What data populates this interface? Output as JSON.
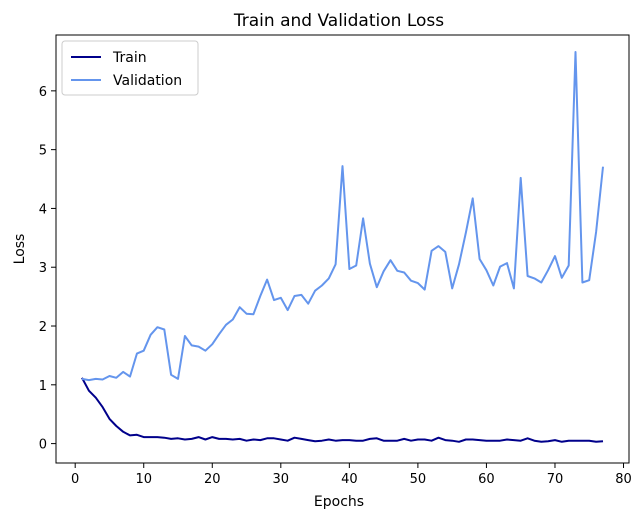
{
  "chart_data": {
    "type": "line",
    "title": "Train and Validation Loss",
    "xlabel": "Epochs",
    "ylabel": "Loss",
    "xlim": [
      -2.8,
      80.8
    ],
    "ylim": [
      -0.33,
      6.95
    ],
    "xticks": [
      0,
      10,
      20,
      30,
      40,
      50,
      60,
      70,
      80
    ],
    "yticks": [
      0,
      1,
      2,
      3,
      4,
      5,
      6
    ],
    "grid": false,
    "legend": "top-left",
    "x": [
      1,
      2,
      3,
      4,
      5,
      6,
      7,
      8,
      9,
      10,
      11,
      12,
      13,
      14,
      15,
      16,
      17,
      18,
      19,
      20,
      21,
      22,
      23,
      24,
      25,
      26,
      27,
      28,
      29,
      30,
      31,
      32,
      33,
      34,
      35,
      36,
      37,
      38,
      39,
      40,
      41,
      42,
      43,
      44,
      45,
      46,
      47,
      48,
      49,
      50,
      51,
      52,
      53,
      54,
      55,
      56,
      57,
      58,
      59,
      60,
      61,
      62,
      63,
      64,
      65,
      66,
      67,
      68,
      69,
      70,
      71,
      72,
      73,
      74,
      75,
      76,
      77
    ],
    "series": [
      {
        "name": "Train",
        "color": "#00008b",
        "values": [
          1.12,
          0.9,
          0.78,
          0.62,
          0.42,
          0.3,
          0.2,
          0.14,
          0.15,
          0.11,
          0.11,
          0.11,
          0.1,
          0.08,
          0.09,
          0.07,
          0.08,
          0.11,
          0.07,
          0.11,
          0.08,
          0.08,
          0.07,
          0.08,
          0.05,
          0.07,
          0.06,
          0.09,
          0.09,
          0.07,
          0.05,
          0.1,
          0.08,
          0.06,
          0.04,
          0.05,
          0.07,
          0.05,
          0.06,
          0.06,
          0.05,
          0.05,
          0.08,
          0.09,
          0.05,
          0.05,
          0.05,
          0.08,
          0.05,
          0.07,
          0.07,
          0.05,
          0.1,
          0.06,
          0.05,
          0.03,
          0.07,
          0.07,
          0.06,
          0.05,
          0.05,
          0.05,
          0.07,
          0.06,
          0.05,
          0.09,
          0.05,
          0.03,
          0.04,
          0.06,
          0.03,
          0.05,
          0.05,
          0.05,
          0.05,
          0.03,
          0.04
        ]
      },
      {
        "name": "Validation",
        "color": "#6495ed",
        "values": [
          1.1,
          1.08,
          1.1,
          1.09,
          1.15,
          1.12,
          1.22,
          1.14,
          1.53,
          1.58,
          1.85,
          1.98,
          1.94,
          1.17,
          1.1,
          1.83,
          1.67,
          1.65,
          1.58,
          1.69,
          1.86,
          2.02,
          2.11,
          2.32,
          2.21,
          2.2,
          2.51,
          2.79,
          2.44,
          2.48,
          2.27,
          2.51,
          2.53,
          2.38,
          2.6,
          2.69,
          2.81,
          3.05,
          4.72,
          2.97,
          3.03,
          3.83,
          3.06,
          2.66,
          2.93,
          3.12,
          2.94,
          2.91,
          2.77,
          2.73,
          2.62,
          3.28,
          3.36,
          3.26,
          2.64,
          3.05,
          3.59,
          4.17,
          3.14,
          2.95,
          2.69,
          3.01,
          3.07,
          2.64,
          4.52,
          2.85,
          2.81,
          2.74,
          2.95,
          3.19,
          2.82,
          3.03,
          6.66,
          2.74,
          2.78,
          3.6,
          4.71
        ]
      }
    ]
  }
}
